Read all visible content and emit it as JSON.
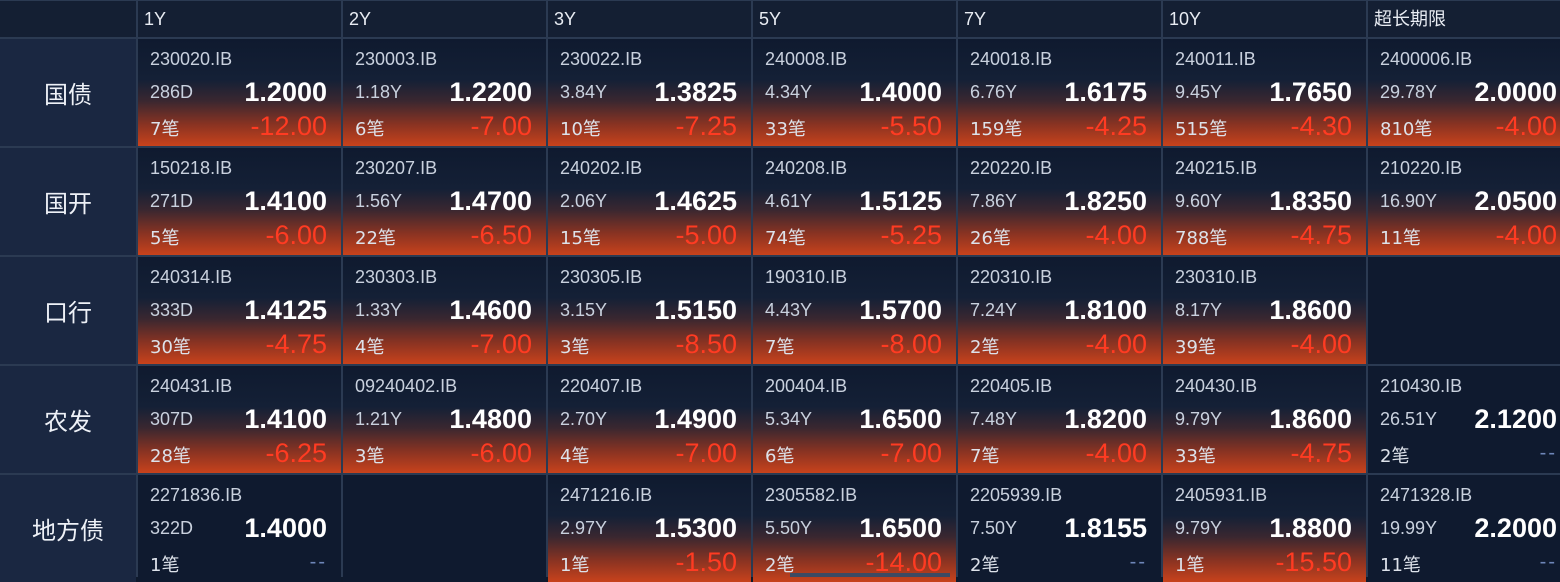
{
  "columns": [
    "1Y",
    "2Y",
    "3Y",
    "5Y",
    "7Y",
    "10Y",
    "超长期限"
  ],
  "rows": [
    {
      "label": "国债",
      "cells": [
        {
          "code": "230020.IB",
          "term": "286D",
          "yield": "1.2000",
          "count": "7笔",
          "change": "-12.00"
        },
        {
          "code": "230003.IB",
          "term": "1.18Y",
          "yield": "1.2200",
          "count": "6笔",
          "change": "-7.00"
        },
        {
          "code": "230022.IB",
          "term": "3.84Y",
          "yield": "1.3825",
          "count": "10笔",
          "change": "-7.25"
        },
        {
          "code": "240008.IB",
          "term": "4.34Y",
          "yield": "1.4000",
          "count": "33笔",
          "change": "-5.50"
        },
        {
          "code": "240018.IB",
          "term": "6.76Y",
          "yield": "1.6175",
          "count": "159笔",
          "change": "-4.25"
        },
        {
          "code": "240011.IB",
          "term": "9.45Y",
          "yield": "1.7650",
          "count": "515笔",
          "change": "-4.30"
        },
        {
          "code": "2400006.IB",
          "term": "29.78Y",
          "yield": "2.0000",
          "count": "810笔",
          "change": "-4.00"
        }
      ]
    },
    {
      "label": "国开",
      "cells": [
        {
          "code": "150218.IB",
          "term": "271D",
          "yield": "1.4100",
          "count": "5笔",
          "change": "-6.00"
        },
        {
          "code": "230207.IB",
          "term": "1.56Y",
          "yield": "1.4700",
          "count": "22笔",
          "change": "-6.50"
        },
        {
          "code": "240202.IB",
          "term": "2.06Y",
          "yield": "1.4625",
          "count": "15笔",
          "change": "-5.00"
        },
        {
          "code": "240208.IB",
          "term": "4.61Y",
          "yield": "1.5125",
          "count": "74笔",
          "change": "-5.25"
        },
        {
          "code": "220220.IB",
          "term": "7.86Y",
          "yield": "1.8250",
          "count": "26笔",
          "change": "-4.00"
        },
        {
          "code": "240215.IB",
          "term": "9.60Y",
          "yield": "1.8350",
          "count": "788笔",
          "change": "-4.75"
        },
        {
          "code": "210220.IB",
          "term": "16.90Y",
          "yield": "2.0500",
          "count": "11笔",
          "change": "-4.00"
        }
      ]
    },
    {
      "label": "口行",
      "cells": [
        {
          "code": "240314.IB",
          "term": "333D",
          "yield": "1.4125",
          "count": "30笔",
          "change": "-4.75"
        },
        {
          "code": "230303.IB",
          "term": "1.33Y",
          "yield": "1.4600",
          "count": "4笔",
          "change": "-7.00"
        },
        {
          "code": "230305.IB",
          "term": "3.15Y",
          "yield": "1.5150",
          "count": "3笔",
          "change": "-8.50"
        },
        {
          "code": "190310.IB",
          "term": "4.43Y",
          "yield": "1.5700",
          "count": "7笔",
          "change": "-8.00"
        },
        {
          "code": "220310.IB",
          "term": "7.24Y",
          "yield": "1.8100",
          "count": "2笔",
          "change": "-4.00"
        },
        {
          "code": "230310.IB",
          "term": "8.17Y",
          "yield": "1.8600",
          "count": "39笔",
          "change": "-4.00"
        },
        null
      ]
    },
    {
      "label": "农发",
      "cells": [
        {
          "code": "240431.IB",
          "term": "307D",
          "yield": "1.4100",
          "count": "28笔",
          "change": "-6.25"
        },
        {
          "code": "09240402.IB",
          "term": "1.21Y",
          "yield": "1.4800",
          "count": "3笔",
          "change": "-6.00"
        },
        {
          "code": "220407.IB",
          "term": "2.70Y",
          "yield": "1.4900",
          "count": "4笔",
          "change": "-7.00"
        },
        {
          "code": "200404.IB",
          "term": "5.34Y",
          "yield": "1.6500",
          "count": "6笔",
          "change": "-7.00"
        },
        {
          "code": "220405.IB",
          "term": "7.48Y",
          "yield": "1.8200",
          "count": "7笔",
          "change": "-4.00"
        },
        {
          "code": "240430.IB",
          "term": "9.79Y",
          "yield": "1.8600",
          "count": "33笔",
          "change": "-4.75"
        },
        {
          "code": "210430.IB",
          "term": "26.51Y",
          "yield": "2.1200",
          "count": "2笔",
          "change": "--"
        }
      ]
    },
    {
      "label": "地方债",
      "cells": [
        {
          "code": "2271836.IB",
          "term": "322D",
          "yield": "1.4000",
          "count": "1笔",
          "change": "--"
        },
        null,
        {
          "code": "2471216.IB",
          "term": "2.97Y",
          "yield": "1.5300",
          "count": "1笔",
          "change": "-1.50"
        },
        {
          "code": "2305582.IB",
          "term": "5.50Y",
          "yield": "1.6500",
          "count": "2笔",
          "change": "-14.00"
        },
        {
          "code": "2205939.IB",
          "term": "7.50Y",
          "yield": "1.8155",
          "count": "2笔",
          "change": "--"
        },
        {
          "code": "2405931.IB",
          "term": "9.79Y",
          "yield": "1.8800",
          "count": "1笔",
          "change": "-15.50"
        },
        {
          "code": "2471328.IB",
          "term": "19.99Y",
          "yield": "2.2000",
          "count": "11笔",
          "change": "--"
        }
      ]
    }
  ],
  "colors": {
    "background": "#0f1a2f",
    "grid_line": "#2b3a52",
    "change_down": "#ff3b22",
    "no_change": "#6e86b8",
    "hot_gradient_bottom": "#c8421c"
  }
}
